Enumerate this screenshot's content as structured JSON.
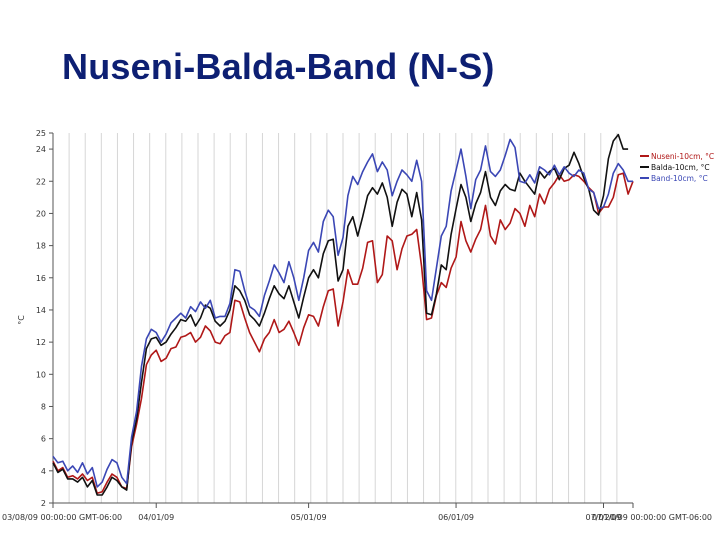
{
  "title": "Nuseni-Balda-Band (N-S)",
  "chart_data": {
    "type": "line",
    "title": "Nuseni-Balda-Band (N-S)",
    "ylabel": "°C",
    "xlabel": "",
    "ylim": [
      2,
      25
    ],
    "y_ticks": [
      25,
      24,
      22,
      20,
      18,
      16,
      14,
      12,
      10,
      8,
      6,
      4,
      2
    ],
    "x_ticks": [
      "03/08/09 00:00:00 GMT-06:00",
      "04/01/09",
      "05/01/09",
      "06/01/09",
      "07/01/09",
      "07/20/09 00:00:00 GMT-06:00"
    ],
    "grid": true,
    "legend": "top-right",
    "series": [
      {
        "name": "Nuseni-10cm, °C",
        "color": "#b01818",
        "values": [
          4.6,
          4.0,
          4.2,
          3.6,
          3.7,
          3.5,
          3.8,
          3.4,
          3.6,
          2.6,
          2.7,
          3.3,
          3.8,
          3.6,
          3.0,
          2.9,
          5.5,
          6.9,
          8.5,
          10.6,
          11.2,
          11.5,
          10.8,
          11.0,
          11.6,
          11.7,
          12.3,
          12.4,
          12.6,
          12.0,
          12.3,
          13.0,
          12.7,
          12.0,
          11.9,
          12.4,
          12.6,
          14.6,
          14.5,
          13.5,
          12.6,
          12.0,
          11.4,
          12.2,
          12.6,
          13.4,
          12.6,
          12.8,
          13.3,
          12.6,
          11.8,
          12.9,
          13.7,
          13.6,
          13.0,
          14.2,
          15.2,
          15.3,
          13.0,
          14.5,
          16.5,
          15.6,
          15.6,
          16.6,
          18.2,
          18.3,
          15.7,
          16.2,
          18.6,
          18.3,
          16.5,
          17.8,
          18.6,
          18.7,
          19.0,
          16.7,
          13.4,
          13.5,
          14.9,
          15.7,
          15.4,
          16.6,
          17.3,
          19.5,
          18.3,
          17.6,
          18.4,
          19.0,
          20.5,
          18.6,
          18.1,
          19.6,
          19.0,
          19.4,
          20.3,
          20.0,
          19.2,
          20.5,
          19.8,
          21.2,
          20.6,
          21.5,
          21.9,
          22.4,
          22.0,
          22.1,
          22.4,
          22.3,
          22.0,
          21.6,
          21.3,
          20.0,
          20.4,
          20.4,
          21.0,
          22.4,
          22.5,
          21.2,
          22.0
        ]
      },
      {
        "name": "Balda-10cm, °C",
        "color": "#111111",
        "values": [
          4.5,
          3.9,
          4.1,
          3.5,
          3.5,
          3.3,
          3.6,
          3.0,
          3.4,
          2.5,
          2.5,
          3.0,
          3.6,
          3.4,
          3.0,
          2.8,
          5.8,
          7.2,
          9.5,
          11.6,
          12.2,
          12.3,
          11.8,
          12.0,
          12.5,
          12.9,
          13.4,
          13.3,
          13.7,
          13.0,
          13.5,
          14.3,
          14.1,
          13.3,
          13.0,
          13.3,
          14.0,
          15.5,
          15.2,
          14.6,
          13.7,
          13.4,
          13.0,
          13.8,
          14.7,
          15.5,
          15.0,
          14.7,
          15.5,
          14.5,
          13.5,
          14.8,
          16.0,
          16.5,
          16.0,
          17.5,
          18.3,
          18.4,
          15.8,
          16.5,
          19.2,
          19.8,
          18.6,
          19.8,
          21.1,
          21.6,
          21.2,
          21.9,
          21.0,
          19.2,
          20.7,
          21.5,
          21.2,
          19.8,
          21.3,
          19.6,
          13.8,
          13.7,
          15.0,
          16.8,
          16.5,
          18.7,
          20.3,
          21.8,
          21.0,
          19.5,
          20.6,
          21.3,
          22.6,
          21.0,
          20.5,
          21.4,
          21.8,
          21.5,
          21.4,
          22.5,
          22.0,
          21.6,
          21.2,
          22.6,
          22.2,
          22.6,
          22.8,
          22.1,
          22.8,
          23.0,
          23.8,
          23.1,
          22.2,
          21.5,
          20.2,
          19.9,
          21.1,
          23.4,
          24.5,
          24.9,
          24.0,
          24.0
        ]
      },
      {
        "name": "Band-10cm, °C",
        "color": "#3b47b5",
        "values": [
          4.9,
          4.5,
          4.6,
          4.0,
          4.3,
          3.9,
          4.5,
          3.8,
          4.2,
          3.0,
          3.3,
          4.1,
          4.7,
          4.5,
          3.6,
          3.2,
          6.1,
          7.7,
          10.5,
          12.2,
          12.8,
          12.6,
          12.0,
          12.5,
          13.2,
          13.5,
          13.8,
          13.5,
          14.2,
          13.9,
          14.5,
          14.1,
          14.6,
          13.5,
          13.6,
          13.6,
          14.4,
          16.5,
          16.4,
          15.2,
          14.2,
          14.0,
          13.6,
          14.9,
          15.8,
          16.8,
          16.3,
          15.7,
          17.0,
          16.0,
          14.6,
          16.0,
          17.7,
          18.2,
          17.6,
          19.5,
          20.2,
          19.8,
          17.4,
          18.5,
          21.1,
          22.3,
          21.8,
          22.6,
          23.2,
          23.7,
          22.6,
          23.2,
          22.7,
          21.1,
          22.0,
          22.7,
          22.4,
          22.0,
          23.3,
          22.0,
          15.2,
          14.6,
          16.6,
          18.6,
          19.2,
          21.4,
          22.7,
          24.0,
          22.3,
          20.3,
          22.1,
          22.7,
          24.2,
          22.6,
          22.3,
          22.7,
          23.6,
          24.6,
          24.1,
          22.0,
          21.9,
          22.4,
          21.9,
          22.9,
          22.7,
          22.4,
          23.0,
          22.4,
          22.9,
          22.5,
          22.3,
          22.7,
          22.5,
          21.5,
          21.3,
          20.3,
          20.4,
          21.2,
          22.5,
          23.1,
          22.7,
          22.0,
          22.0
        ]
      }
    ]
  }
}
